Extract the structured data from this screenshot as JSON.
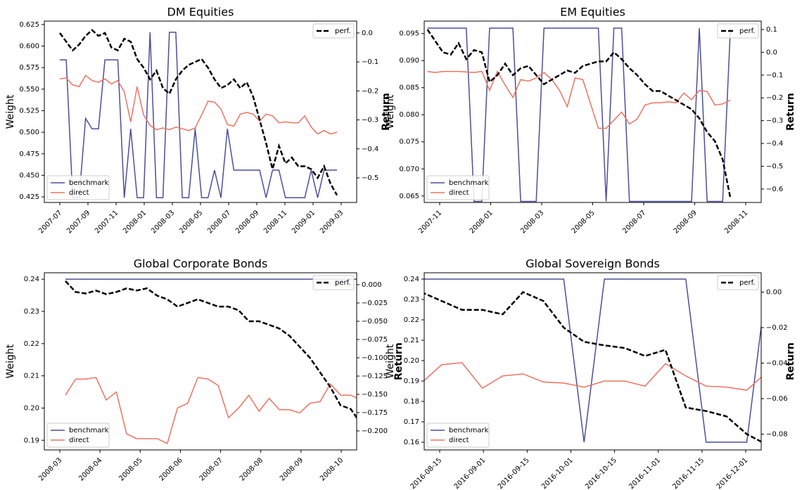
{
  "chart_data": [
    {
      "type": "line",
      "title": "DM Equities",
      "ylabel": "Weight",
      "y2label": "Return",
      "legend_loc": "lower left",
      "legend2_loc": "upper right",
      "xticks": [
        "2007-07",
        "2007-09",
        "2007-11",
        "2008-01",
        "2008-03",
        "2008-05",
        "2008-07",
        "2008-09",
        "2008-11",
        "2009-01",
        "2009-03"
      ],
      "ylim": [
        0.4185,
        0.629
      ],
      "yticks": [
        0.425,
        {
          "value": 0.45,
          "label": "0.450"
        },
        0.475,
        {
          "value": 0.5,
          "label": "0.500"
        },
        0.525,
        {
          "value": 0.55,
          "label": "0.550"
        },
        0.575,
        {
          "value": 0.6,
          "label": "0.600"
        },
        0.625
      ],
      "y2lim": [
        -0.585,
        0.041
      ],
      "y2ticks": [
        {
          "value": 0,
          "label": "0.0"
        },
        {
          "value": -0.1,
          "label": "−0.1"
        },
        {
          "value": -0.2,
          "label": "−0.2"
        },
        {
          "value": -0.3,
          "label": "−0.3"
        },
        {
          "value": -0.4,
          "label": "−0.4"
        },
        {
          "value": -0.5,
          "label": "−0.5"
        }
      ],
      "series": [
        {
          "name": "benchmark",
          "color": "#4b4f9b",
          "values": [
            0.584,
            0.584,
            0.424,
            0.424,
            0.516,
            0.504,
            0.504,
            0.584,
            0.584,
            0.584,
            0.424,
            0.504,
            0.424,
            0.424,
            0.616,
            0.424,
            0.424,
            0.616,
            0.616,
            0.424,
            0.424,
            0.504,
            0.424,
            0.424,
            0.456,
            0.424,
            0.504,
            0.456,
            0.456,
            0.456,
            0.456,
            0.456,
            0.424,
            0.456,
            0.456,
            0.424,
            0.424,
            0.424,
            0.424,
            0.456,
            0.424,
            0.456,
            0.456,
            0.456
          ]
        },
        {
          "name": "direct",
          "color": "#ee7361",
          "values": [
            0.562,
            0.563,
            0.555,
            0.553,
            0.566,
            0.56,
            0.558,
            0.562,
            0.556,
            0.56,
            0.547,
            0.512,
            0.553,
            0.52,
            0.508,
            0.503,
            0.505,
            0.503,
            0.506,
            0.504,
            0.502,
            0.505,
            0.52,
            0.536,
            0.535,
            0.527,
            0.509,
            0.507,
            0.521,
            0.523,
            0.521,
            0.513,
            0.521,
            0.519,
            0.511,
            0.512,
            0.511,
            0.511,
            0.519,
            0.506,
            0.498,
            0.502,
            0.498,
            0.5
          ]
        },
        {
          "name": "perf.",
          "color": "#000000",
          "axis": "y2",
          "values": [
            0.0,
            -0.03,
            -0.06,
            -0.04,
            -0.01,
            0.01,
            -0.01,
            0.0,
            -0.05,
            -0.06,
            -0.02,
            -0.03,
            -0.09,
            -0.12,
            -0.16,
            -0.13,
            -0.19,
            -0.21,
            -0.16,
            -0.13,
            -0.11,
            -0.1,
            -0.09,
            -0.12,
            -0.16,
            -0.19,
            -0.18,
            -0.16,
            -0.19,
            -0.17,
            -0.22,
            -0.3,
            -0.38,
            -0.47,
            -0.39,
            -0.45,
            -0.43,
            -0.46,
            -0.46,
            -0.47,
            -0.5,
            -0.46,
            -0.52,
            -0.56
          ]
        }
      ]
    },
    {
      "type": "line",
      "title": "EM Equities",
      "ylabel": "Weight",
      "y2label": "Return",
      "legend_loc": "lower left",
      "legend2_loc": "upper right",
      "xticks": [
        "2007-11",
        "2008-01",
        "2008-03",
        "2008-05",
        "2008-07",
        "2008-09",
        "2008-11"
      ],
      "ylim": [
        0.0638,
        0.0973
      ],
      "yticks": [
        0.065,
        {
          "value": 0.07,
          "label": "0.070"
        },
        0.075,
        {
          "value": 0.08,
          "label": "0.080"
        },
        0.085,
        {
          "value": 0.09,
          "label": "0.090"
        },
        0.095
      ],
      "y2lim": [
        -0.659,
        0.137
      ],
      "y2ticks": [
        0.1,
        {
          "value": 0,
          "label": "0.0"
        },
        {
          "value": -0.1,
          "label": "−0.1"
        },
        {
          "value": -0.2,
          "label": "−0.2"
        },
        {
          "value": -0.3,
          "label": "−0.3"
        },
        {
          "value": -0.4,
          "label": "−0.4"
        },
        {
          "value": -0.5,
          "label": "−0.5"
        },
        {
          "value": -0.6,
          "label": "−0.6"
        }
      ],
      "series": [
        {
          "name": "benchmark",
          "color": "#4b4f9b",
          "values": [
            0.096,
            0.096,
            0.096,
            0.096,
            0.096,
            0.096,
            0.064,
            0.064,
            0.096,
            0.096,
            0.096,
            0.096,
            0.064,
            0.064,
            0.064,
            0.096,
            0.096,
            0.096,
            0.096,
            0.096,
            0.096,
            0.096,
            0.096,
            0.064,
            0.096,
            0.096,
            0.064,
            0.064,
            0.064,
            0.064,
            0.064,
            0.064,
            0.064,
            0.064,
            0.064,
            0.096,
            0.064,
            0.064,
            0.064,
            0.096
          ]
        },
        {
          "name": "direct",
          "color": "#ee7361",
          "values": [
            0.088,
            0.0878,
            0.088,
            0.088,
            0.088,
            0.0879,
            0.0878,
            0.088,
            0.0845,
            0.088,
            0.0855,
            0.0832,
            0.0865,
            0.0862,
            0.0868,
            0.0878,
            0.0865,
            0.0845,
            0.0815,
            0.0868,
            0.0865,
            0.082,
            0.0775,
            0.0775,
            0.079,
            0.0805,
            0.0783,
            0.0792,
            0.0818,
            0.0822,
            0.0822,
            0.0824,
            0.0822,
            0.084,
            0.0828,
            0.0845,
            0.0843,
            0.0818,
            0.082,
            0.0827
          ]
        },
        {
          "name": "perf.",
          "color": "#000000",
          "axis": "y2",
          "values": [
            0.1,
            0.05,
            0.0,
            -0.01,
            0.04,
            -0.03,
            0.01,
            0.0,
            -0.13,
            -0.1,
            -0.05,
            -0.1,
            -0.07,
            -0.06,
            -0.1,
            -0.14,
            -0.12,
            -0.1,
            -0.08,
            -0.09,
            -0.06,
            -0.05,
            -0.04,
            -0.04,
            0.0,
            -0.03,
            -0.07,
            -0.1,
            -0.14,
            -0.17,
            -0.17,
            -0.19,
            -0.21,
            -0.23,
            -0.25,
            -0.29,
            -0.35,
            -0.39,
            -0.47,
            -0.64
          ]
        }
      ]
    },
    {
      "type": "line",
      "title": "Global Corporate Bonds",
      "ylabel": "Weight",
      "y2label": "Return",
      "legend_loc": "lower left",
      "legend2_loc": "upper right",
      "xticks": [
        "2008-03",
        "2008-04",
        "2008-05",
        "2008-06",
        "2008-07",
        "2008-08",
        "2008-09",
        "2008-10"
      ],
      "ylim": [
        0.187,
        0.242
      ],
      "yticks": [
        0.19,
        {
          "value": 0.2,
          "label": "0.20"
        },
        0.21,
        0.22,
        0.23,
        0.24
      ],
      "y2lim": [
        -0.226,
        0.0163
      ],
      "y2ticks": [
        {
          "value": 0,
          "label": "0.000"
        },
        {
          "value": -0.025,
          "label": "−0.025"
        },
        {
          "value": -0.05,
          "label": "−0.050"
        },
        {
          "value": -0.075,
          "label": "−0.075"
        },
        {
          "value": -0.1,
          "label": "−0.100"
        },
        {
          "value": -0.125,
          "label": "−0.125"
        },
        {
          "value": -0.15,
          "label": "−0.150"
        },
        {
          "value": -0.175,
          "label": "−0.175"
        },
        {
          "value": -0.2,
          "label": "−0.200"
        }
      ],
      "series": [
        {
          "name": "benchmark",
          "color": "#4b4f9b",
          "values": [
            0.24,
            0.24,
            0.24,
            0.24,
            0.24,
            0.24,
            0.24,
            0.24,
            0.24,
            0.24,
            0.24,
            0.24,
            0.24,
            0.24,
            0.24,
            0.24,
            0.24,
            0.24,
            0.24,
            0.24,
            0.24,
            0.24,
            0.24,
            0.24,
            0.24,
            0.24,
            0.24,
            0.24,
            0.24,
            0.24
          ]
        },
        {
          "name": "direct",
          "color": "#ee7361",
          "values": [
            0.204,
            0.209,
            0.209,
            0.2095,
            0.2025,
            0.205,
            0.192,
            0.1905,
            0.1905,
            0.1905,
            0.189,
            0.2,
            0.2015,
            0.2095,
            0.209,
            0.207,
            0.197,
            0.2,
            0.204,
            0.199,
            0.203,
            0.1995,
            0.1995,
            0.1985,
            0.2015,
            0.202,
            0.2075,
            0.204,
            0.204,
            0.2025
          ]
        },
        {
          "name": "perf.",
          "color": "#000000",
          "axis": "y2",
          "values": [
            0.005,
            -0.01,
            -0.012,
            -0.008,
            -0.013,
            -0.01,
            -0.005,
            -0.008,
            -0.005,
            -0.015,
            -0.02,
            -0.03,
            -0.025,
            -0.02,
            -0.025,
            -0.03,
            -0.03,
            -0.035,
            -0.05,
            -0.05,
            -0.055,
            -0.06,
            -0.07,
            -0.085,
            -0.1,
            -0.12,
            -0.14,
            -0.165,
            -0.17,
            -0.19
          ]
        }
      ]
    },
    {
      "type": "line",
      "title": "Global Sovereign Bonds",
      "ylabel": "Weight",
      "y2label": "Return",
      "legend_loc": "lower left",
      "legend2_loc": "upper right",
      "xticks": [
        "2016-08-15",
        "2016-09-01",
        "2016-09-15",
        "2016-10-01",
        "2016-10-15",
        "2016-11-01",
        "2016-11-15",
        "2016-12-01"
      ],
      "ylim": [
        0.1562,
        0.2431
      ],
      "yticks": [
        0.16,
        0.17,
        0.18,
        0.19,
        {
          "value": 0.2,
          "label": "0.20"
        },
        0.21,
        0.22,
        0.23,
        0.24
      ],
      "y2lim": [
        -0.0889,
        0.0109
      ],
      "y2ticks": [
        {
          "value": 0,
          "label": "0.00"
        },
        {
          "value": -0.02,
          "label": "−0.02"
        },
        {
          "value": -0.04,
          "label": "−0.04"
        },
        {
          "value": -0.06,
          "label": "−0.06"
        },
        {
          "value": -0.08,
          "label": "−0.08"
        }
      ],
      "series": [
        {
          "name": "benchmark",
          "color": "#4b4f9b",
          "values": [
            0.24,
            0.24,
            0.24,
            0.24,
            0.24,
            0.24,
            0.24,
            0.24,
            0.16,
            0.24,
            0.24,
            0.24,
            0.24,
            0.24,
            0.16,
            0.16,
            0.16,
            0.24
          ]
        },
        {
          "name": "direct",
          "color": "#ee7361",
          "values": [
            0.189,
            0.198,
            0.199,
            0.1865,
            0.1925,
            0.1935,
            0.1895,
            0.189,
            0.187,
            0.19,
            0.19,
            0.1875,
            0.1985,
            0.1925,
            0.1875,
            0.187,
            0.1855,
            0.1945
          ]
        },
        {
          "name": "perf.",
          "color": "#000000",
          "axis": "y2",
          "values": [
            0.0,
            -0.005,
            -0.01,
            -0.01,
            -0.0125,
            0.0,
            -0.005,
            -0.02,
            -0.028,
            -0.03,
            -0.0315,
            -0.036,
            -0.0325,
            -0.065,
            -0.067,
            -0.07,
            -0.08,
            -0.086
          ]
        }
      ]
    }
  ]
}
